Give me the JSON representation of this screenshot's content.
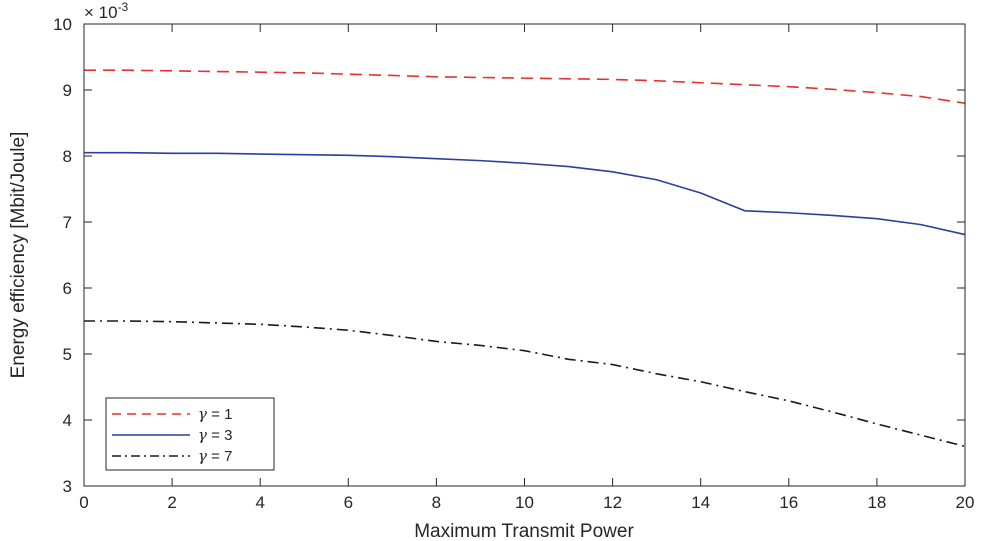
{
  "chart_data": {
    "type": "line",
    "title": "",
    "xlabel": "Maximum Transmit Power",
    "ylabel": "Energy efficiency [Mbit/Joule]",
    "y_multiplier": "× 10",
    "y_exponent": "-3",
    "xlim": [
      0,
      20
    ],
    "ylim": [
      3,
      10
    ],
    "xticks": [
      "0",
      "2",
      "4",
      "6",
      "8",
      "10",
      "12",
      "14",
      "16",
      "18",
      "20"
    ],
    "yticks": [
      "3",
      "4",
      "5",
      "6",
      "7",
      "8",
      "9",
      "10"
    ],
    "grid": false,
    "legend_position": "bottom-left",
    "x": [
      0,
      1,
      2,
      3,
      4,
      5,
      6,
      7,
      8,
      9,
      10,
      11,
      12,
      13,
      14,
      15,
      16,
      17,
      18,
      19,
      20
    ],
    "series": [
      {
        "name": "γ = 1",
        "legend_symbol": "γ",
        "legend_value": "= 1",
        "style": "dashed",
        "color": "#e8312e",
        "values": [
          9.3,
          9.3,
          9.29,
          9.28,
          9.27,
          9.26,
          9.24,
          9.22,
          9.2,
          9.19,
          9.18,
          9.17,
          9.16,
          9.14,
          9.11,
          9.08,
          9.05,
          9.01,
          8.96,
          8.9,
          8.8
        ]
      },
      {
        "name": "γ = 3",
        "legend_symbol": "γ",
        "legend_value": "= 3",
        "style": "solid",
        "color": "#2a3f9e",
        "values": [
          8.05,
          8.05,
          8.04,
          8.04,
          8.03,
          8.02,
          8.01,
          7.99,
          7.96,
          7.93,
          7.89,
          7.84,
          7.76,
          7.64,
          7.44,
          7.17,
          7.14,
          7.1,
          7.05,
          6.96,
          6.81
        ]
      },
      {
        "name": "γ = 7",
        "legend_symbol": "γ",
        "legend_value": "= 7",
        "style": "dashdot",
        "color": "#1a1a1a",
        "values": [
          5.5,
          5.5,
          5.49,
          5.47,
          5.45,
          5.41,
          5.36,
          5.28,
          5.19,
          5.13,
          5.05,
          4.92,
          4.84,
          4.7,
          4.58,
          4.43,
          4.29,
          4.12,
          3.94,
          3.77,
          3.6
        ]
      }
    ]
  }
}
